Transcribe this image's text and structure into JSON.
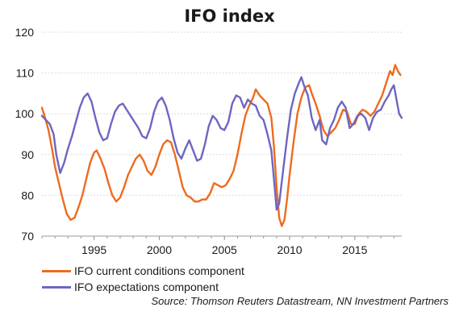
{
  "chart_data": {
    "type": "line",
    "title": "IFO index",
    "xlabel": "",
    "ylabel": "",
    "xlim": [
      1991,
      2018.6
    ],
    "ylim": [
      70,
      120
    ],
    "y_ticks": [
      "70",
      "80",
      "90",
      "100",
      "110",
      "120"
    ],
    "x_ticks": [
      {
        "value": 1995,
        "label": "1995"
      },
      {
        "value": 2000,
        "label": "2000"
      },
      {
        "value": 2005,
        "label": "2005"
      },
      {
        "value": 2010,
        "label": "2010"
      },
      {
        "value": 2015,
        "label": "2015"
      }
    ],
    "grid": true,
    "legend_position": "bottom-left",
    "source": "Source: Thomson Reuters Datastream, NN Investment Partners",
    "series": [
      {
        "name": "IFO current conditions component",
        "color": "#ee6b1e",
        "points": [
          [
            1991.0,
            101.5
          ],
          [
            1991.2,
            99.5
          ],
          [
            1991.5,
            96
          ],
          [
            1991.8,
            91
          ],
          [
            1992.0,
            87
          ],
          [
            1992.3,
            83
          ],
          [
            1992.6,
            79
          ],
          [
            1992.9,
            75.5
          ],
          [
            1993.2,
            74
          ],
          [
            1993.5,
            74.5
          ],
          [
            1993.8,
            77
          ],
          [
            1994.1,
            80
          ],
          [
            1994.4,
            84
          ],
          [
            1994.7,
            88
          ],
          [
            1995.0,
            90.5
          ],
          [
            1995.2,
            91
          ],
          [
            1995.5,
            89
          ],
          [
            1995.8,
            86.5
          ],
          [
            1996.1,
            83
          ],
          [
            1996.4,
            80
          ],
          [
            1996.7,
            78.5
          ],
          [
            1997.0,
            79.5
          ],
          [
            1997.3,
            82
          ],
          [
            1997.6,
            85
          ],
          [
            1997.9,
            87
          ],
          [
            1998.2,
            89
          ],
          [
            1998.5,
            90
          ],
          [
            1998.8,
            88.5
          ],
          [
            1999.1,
            86
          ],
          [
            1999.4,
            85
          ],
          [
            1999.7,
            87
          ],
          [
            2000.0,
            90
          ],
          [
            2000.3,
            92.5
          ],
          [
            2000.6,
            93.5
          ],
          [
            2000.9,
            93
          ],
          [
            2001.2,
            90
          ],
          [
            2001.5,
            86
          ],
          [
            2001.8,
            82
          ],
          [
            2002.1,
            80
          ],
          [
            2002.4,
            79.5
          ],
          [
            2002.7,
            78.5
          ],
          [
            2003.0,
            78.5
          ],
          [
            2003.3,
            79
          ],
          [
            2003.6,
            79
          ],
          [
            2003.9,
            80.5
          ],
          [
            2004.2,
            83
          ],
          [
            2004.5,
            82.5
          ],
          [
            2004.8,
            82
          ],
          [
            2005.1,
            82.5
          ],
          [
            2005.4,
            84
          ],
          [
            2005.7,
            86
          ],
          [
            2006.0,
            90
          ],
          [
            2006.3,
            95
          ],
          [
            2006.6,
            99.5
          ],
          [
            2006.9,
            102
          ],
          [
            2007.2,
            104
          ],
          [
            2007.4,
            106
          ],
          [
            2007.7,
            104.5
          ],
          [
            2008.0,
            103.5
          ],
          [
            2008.3,
            102.5
          ],
          [
            2008.6,
            99
          ],
          [
            2008.8,
            92
          ],
          [
            2009.0,
            82
          ],
          [
            2009.2,
            74.5
          ],
          [
            2009.4,
            72.5
          ],
          [
            2009.6,
            74
          ],
          [
            2009.8,
            79
          ],
          [
            2010.0,
            85
          ],
          [
            2010.3,
            93
          ],
          [
            2010.6,
            100
          ],
          [
            2010.9,
            104
          ],
          [
            2011.2,
            106.5
          ],
          [
            2011.5,
            107
          ],
          [
            2011.7,
            105
          ],
          [
            2012.0,
            102.5
          ],
          [
            2012.3,
            99.5
          ],
          [
            2012.6,
            96
          ],
          [
            2012.9,
            94.5
          ],
          [
            2013.2,
            95.5
          ],
          [
            2013.5,
            96.5
          ],
          [
            2013.8,
            98.5
          ],
          [
            2014.1,
            101
          ],
          [
            2014.4,
            100.5
          ],
          [
            2014.7,
            97.5
          ],
          [
            2015.0,
            97.5
          ],
          [
            2015.3,
            100
          ],
          [
            2015.6,
            101
          ],
          [
            2015.9,
            100.5
          ],
          [
            2016.2,
            99.5
          ],
          [
            2016.5,
            100.5
          ],
          [
            2016.8,
            102.5
          ],
          [
            2017.1,
            104.5
          ],
          [
            2017.4,
            107.5
          ],
          [
            2017.7,
            110.5
          ],
          [
            2017.9,
            109.5
          ],
          [
            2018.1,
            112
          ],
          [
            2018.3,
            110.5
          ],
          [
            2018.5,
            109.5
          ]
        ]
      },
      {
        "name": "IFO expectations component",
        "color": "#6d66c2",
        "points": [
          [
            1991.0,
            99.5
          ],
          [
            1991.3,
            98.5
          ],
          [
            1991.6,
            97.5
          ],
          [
            1991.9,
            95
          ],
          [
            1992.1,
            90
          ],
          [
            1992.4,
            85.5
          ],
          [
            1992.7,
            88
          ],
          [
            1993.0,
            91.5
          ],
          [
            1993.3,
            94.5
          ],
          [
            1993.6,
            98
          ],
          [
            1993.9,
            101.5
          ],
          [
            1994.2,
            104
          ],
          [
            1994.5,
            105
          ],
          [
            1994.8,
            103
          ],
          [
            1995.1,
            99
          ],
          [
            1995.4,
            95.5
          ],
          [
            1995.7,
            93.5
          ],
          [
            1996.0,
            94
          ],
          [
            1996.3,
            97.5
          ],
          [
            1996.6,
            100.5
          ],
          [
            1996.9,
            102
          ],
          [
            1997.2,
            102.5
          ],
          [
            1997.5,
            101
          ],
          [
            1997.8,
            99.5
          ],
          [
            1998.1,
            98
          ],
          [
            1998.4,
            96.5
          ],
          [
            1998.7,
            94.5
          ],
          [
            1999.0,
            94
          ],
          [
            1999.3,
            96.5
          ],
          [
            1999.6,
            100.5
          ],
          [
            1999.9,
            103
          ],
          [
            2000.2,
            104
          ],
          [
            2000.5,
            102
          ],
          [
            2000.8,
            98.5
          ],
          [
            2001.1,
            94
          ],
          [
            2001.4,
            90.5
          ],
          [
            2001.7,
            89
          ],
          [
            2002.0,
            91.5
          ],
          [
            2002.3,
            93.5
          ],
          [
            2002.6,
            91
          ],
          [
            2002.9,
            88.5
          ],
          [
            2003.2,
            89
          ],
          [
            2003.5,
            92.5
          ],
          [
            2003.8,
            97
          ],
          [
            2004.1,
            99.5
          ],
          [
            2004.4,
            98.5
          ],
          [
            2004.7,
            96.5
          ],
          [
            2005.0,
            96
          ],
          [
            2005.3,
            98
          ],
          [
            2005.6,
            102.5
          ],
          [
            2005.9,
            104.5
          ],
          [
            2006.2,
            104
          ],
          [
            2006.5,
            101.5
          ],
          [
            2006.8,
            103.5
          ],
          [
            2007.1,
            102.5
          ],
          [
            2007.4,
            102
          ],
          [
            2007.7,
            99.5
          ],
          [
            2008.0,
            98.5
          ],
          [
            2008.3,
            95
          ],
          [
            2008.6,
            91
          ],
          [
            2008.8,
            84
          ],
          [
            2009.0,
            76.5
          ],
          [
            2009.2,
            78
          ],
          [
            2009.5,
            86
          ],
          [
            2009.8,
            94
          ],
          [
            2010.1,
            101
          ],
          [
            2010.4,
            105
          ],
          [
            2010.7,
            107.5
          ],
          [
            2010.9,
            109
          ],
          [
            2011.1,
            107
          ],
          [
            2011.4,
            104.5
          ],
          [
            2011.7,
            99
          ],
          [
            2012.0,
            96
          ],
          [
            2012.3,
            98.5
          ],
          [
            2012.5,
            93.5
          ],
          [
            2012.8,
            92.5
          ],
          [
            2013.1,
            96.5
          ],
          [
            2013.4,
            98.5
          ],
          [
            2013.7,
            101.5
          ],
          [
            2014.0,
            103
          ],
          [
            2014.3,
            101.5
          ],
          [
            2014.6,
            96.5
          ],
          [
            2014.9,
            97.5
          ],
          [
            2015.2,
            99.5
          ],
          [
            2015.5,
            100
          ],
          [
            2015.8,
            99
          ],
          [
            2016.1,
            96
          ],
          [
            2016.4,
            99
          ],
          [
            2016.7,
            100.5
          ],
          [
            2017.0,
            101
          ],
          [
            2017.3,
            103
          ],
          [
            2017.6,
            104.5
          ],
          [
            2017.8,
            106
          ],
          [
            2018.0,
            107
          ],
          [
            2018.2,
            103.5
          ],
          [
            2018.4,
            100
          ],
          [
            2018.6,
            99
          ]
        ]
      }
    ]
  }
}
